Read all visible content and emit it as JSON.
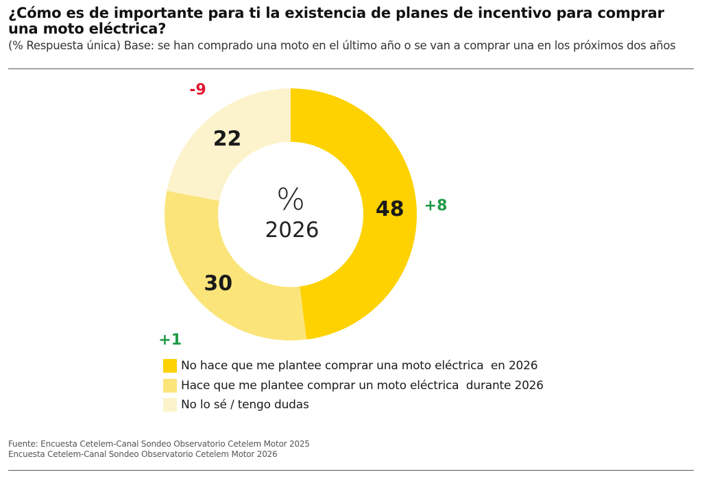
{
  "header": {
    "title": "¿Cómo es de importante para ti la existencia de planes de incentivo para comprar una moto eléctrica?",
    "subtitle": "(% Respuesta única) Base: se han comprado una moto en el último año o se van a comprar una en los próximos dos años"
  },
  "chart_data": {
    "type": "pie",
    "variant": "donut",
    "title": "¿Cómo es de importante para ti la existencia de planes de incentivo para comprar una moto eléctrica?",
    "center_label": {
      "symbol": "%",
      "year": "2026"
    },
    "categories": [
      "No hace que me plantee comprar una moto eléctrica  en 2026",
      "Hace que me plantee comprar un moto eléctrica  durante 2026",
      "No lo sé / tengo dudas"
    ],
    "values": [
      48,
      30,
      22
    ],
    "value_labels": [
      "48",
      "30",
      "22"
    ],
    "changes": [
      8,
      1,
      -9
    ],
    "change_labels": [
      "+8",
      "+1",
      "-9"
    ],
    "colors": [
      "#FDD200",
      "#FBE47A",
      "#FCF3CC"
    ],
    "change_colors": {
      "positive": "#1E9A46",
      "negative": "#E0162B"
    },
    "legend_position": "bottom"
  },
  "footer": {
    "source_line1": "Fuente: Encuesta Cetelem-Canal Sondeo Observatorio Cetelem Motor 2025",
    "source_line2": "Encuesta Cetelem-Canal Sondeo Observatorio Cetelem Motor 2026"
  }
}
